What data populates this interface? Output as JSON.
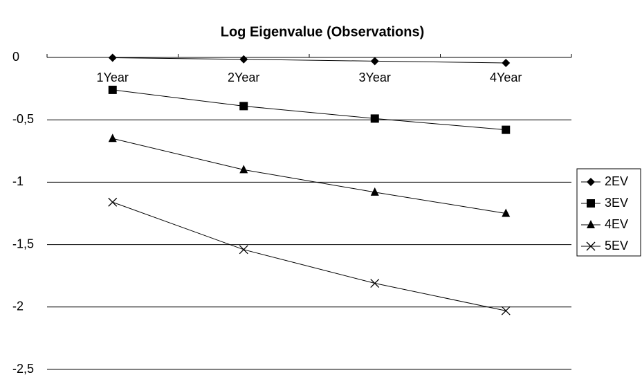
{
  "chart_data": {
    "type": "line",
    "title": "Log Eigenvalue (Observations)",
    "categories": [
      "1Year",
      "2Year",
      "3Year",
      "4Year"
    ],
    "series": [
      {
        "name": "2EV",
        "color": "#000000",
        "marker": "diamond",
        "values": [
          -0.003,
          -0.015,
          -0.03,
          -0.044
        ]
      },
      {
        "name": "3EV",
        "color": "#000000",
        "marker": "square",
        "values": [
          -0.26,
          -0.39,
          -0.49,
          -0.58
        ]
      },
      {
        "name": "4EV",
        "color": "#000000",
        "marker": "triangle",
        "values": [
          -0.65,
          -0.9,
          -1.08,
          -1.25
        ]
      },
      {
        "name": "5EV",
        "color": "#000000",
        "marker": "x",
        "values": [
          -1.16,
          -1.54,
          -1.81,
          -2.03
        ]
      }
    ],
    "ylim": [
      -2.5,
      0
    ],
    "yticks": [
      {
        "value": -2.5,
        "label": "-2,5"
      },
      -2,
      {
        "value": -1.5,
        "label": "-1,5"
      },
      -1,
      {
        "value": -0.5,
        "label": "-0,5"
      },
      0
    ],
    "grid": true,
    "legend": "right"
  }
}
